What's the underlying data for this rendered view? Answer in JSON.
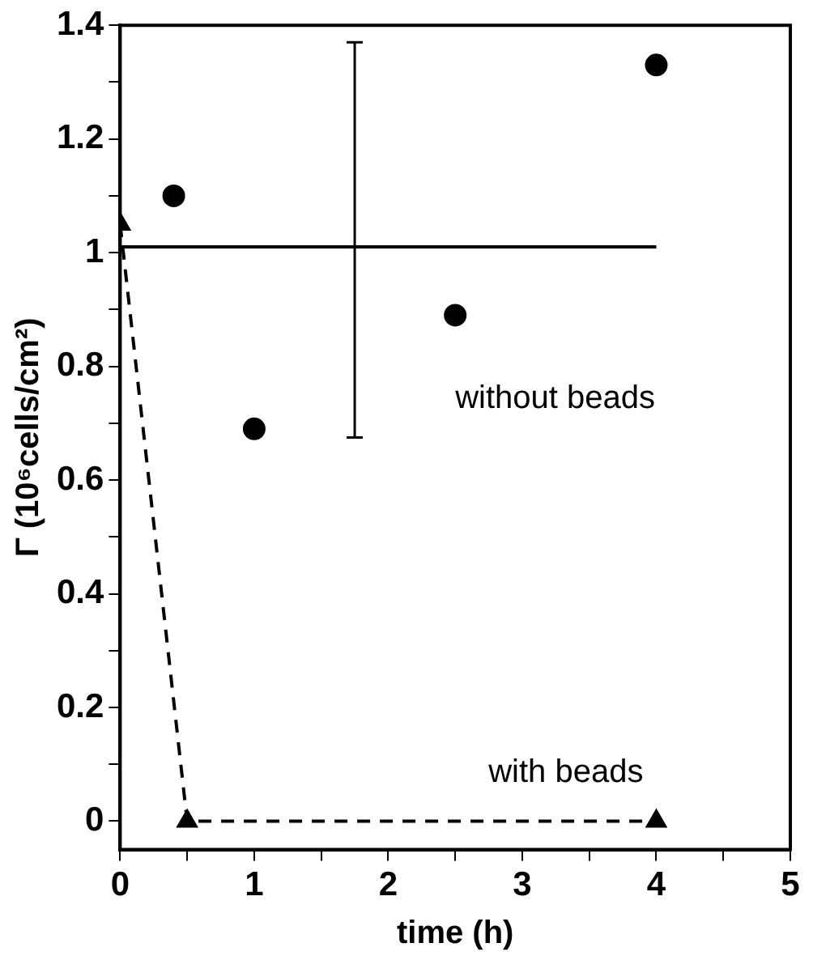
{
  "chart_data": {
    "type": "scatter",
    "xlabel": "time (h)",
    "ylabel": "Γ (10⁶cells/cm²)",
    "xlim": [
      0,
      5
    ],
    "ylim": [
      -0.05,
      1.4
    ],
    "xticks": [
      0,
      {
        "value": 0.5,
        "label": null
      },
      1,
      {
        "value": 1.5,
        "label": null
      },
      2,
      {
        "value": 2.5,
        "label": null
      },
      3,
      {
        "value": 3.5,
        "label": null
      },
      4,
      {
        "value": 4.5,
        "label": null
      },
      5
    ],
    "yticks": [
      0,
      {
        "value": 0.1,
        "label": null
      },
      0.2,
      {
        "value": 0.3,
        "label": null
      },
      0.4,
      {
        "value": 0.5,
        "label": null
      },
      0.6,
      {
        "value": 0.7,
        "label": null
      },
      0.8,
      {
        "value": 0.9,
        "label": null
      },
      1,
      {
        "value": 1.1,
        "label": null
      },
      1.2,
      {
        "value": 1.3,
        "label": null
      },
      1.4
    ],
    "grid": false,
    "legend": false,
    "series": [
      {
        "type": "scatter",
        "name": "without beads",
        "color": "#000000",
        "marker": "circle",
        "x": [
          0.4,
          1,
          2.5,
          4
        ],
        "values": [
          1.1,
          0.69,
          0.89,
          1.33
        ]
      },
      {
        "type": "line",
        "name": "with beads",
        "color": "#000000",
        "marker": "triangle",
        "line_style": "dashed",
        "x": [
          0,
          0.5,
          4
        ],
        "values": [
          1.05,
          0,
          0
        ]
      },
      {
        "type": "line",
        "color": "#000000",
        "marker": "none",
        "line_style": "solid",
        "x": [
          0,
          1.75,
          4
        ],
        "values": [
          1.01,
          1.01,
          1.01
        ],
        "errors": [
          null,
          [
            0.675,
            1.37
          ],
          null
        ]
      }
    ]
  }
}
